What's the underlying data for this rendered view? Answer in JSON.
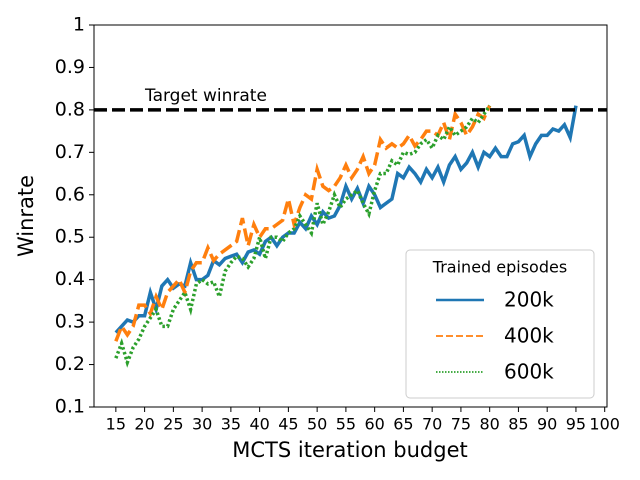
{
  "chart_data": {
    "type": "line",
    "xlabel": "MCTS iteration budget",
    "ylabel": "Winrate",
    "xlim": [
      11.2,
      100.4
    ],
    "ylim": [
      0.1,
      1.0
    ],
    "xticks": [
      15,
      20,
      25,
      30,
      35,
      40,
      45,
      50,
      55,
      60,
      65,
      70,
      75,
      80,
      85,
      90,
      95,
      100
    ],
    "yticks": [
      0.1,
      0.2,
      0.3,
      0.4,
      0.5,
      0.6,
      0.7,
      0.8,
      0.9,
      1.0
    ],
    "reference_line": {
      "value": 0.8,
      "label": "Target winrate",
      "color": "#000000"
    },
    "legend_title": "Trained episodes",
    "legend_position": "lower right",
    "series": [
      {
        "name": "200k",
        "color": "#1f77b4",
        "style": "solid",
        "x": [
          15,
          16,
          17,
          18,
          19,
          20,
          21,
          22,
          23,
          24,
          25,
          26,
          27,
          28,
          29,
          30,
          31,
          32,
          33,
          34,
          35,
          36,
          37,
          38,
          39,
          40,
          41,
          42,
          43,
          44,
          45,
          46,
          47,
          48,
          49,
          50,
          51,
          52,
          53,
          54,
          55,
          56,
          57,
          58,
          59,
          60,
          61,
          62,
          63,
          64,
          65,
          66,
          67,
          68,
          69,
          70,
          71,
          72,
          73,
          74,
          75,
          76,
          77,
          78,
          79,
          80,
          81,
          82,
          83,
          84,
          85,
          86,
          87,
          88,
          89,
          90,
          91,
          92,
          93,
          94,
          95
        ],
        "values": [
          0.275,
          0.29,
          0.305,
          0.3,
          0.315,
          0.315,
          0.37,
          0.33,
          0.385,
          0.4,
          0.38,
          0.39,
          0.385,
          0.44,
          0.4,
          0.4,
          0.41,
          0.445,
          0.435,
          0.45,
          0.455,
          0.46,
          0.44,
          0.465,
          0.47,
          0.46,
          0.49,
          0.5,
          0.48,
          0.5,
          0.51,
          0.51,
          0.535,
          0.52,
          0.55,
          0.53,
          0.56,
          0.545,
          0.55,
          0.575,
          0.62,
          0.59,
          0.615,
          0.58,
          0.62,
          0.6,
          0.57,
          0.58,
          0.59,
          0.65,
          0.64,
          0.665,
          0.65,
          0.63,
          0.66,
          0.64,
          0.665,
          0.63,
          0.67,
          0.69,
          0.66,
          0.675,
          0.7,
          0.665,
          0.7,
          0.69,
          0.71,
          0.69,
          0.69,
          0.72,
          0.725,
          0.74,
          0.69,
          0.72,
          0.74,
          0.74,
          0.755,
          0.75,
          0.765,
          0.735,
          0.81
        ]
      },
      {
        "name": "400k",
        "color": "#ff7f0e",
        "style": "dashed",
        "x": [
          15,
          16,
          17,
          18,
          19,
          20,
          21,
          22,
          23,
          24,
          25,
          26,
          27,
          28,
          29,
          30,
          31,
          32,
          33,
          34,
          35,
          36,
          37,
          38,
          39,
          40,
          41,
          42,
          43,
          44,
          45,
          46,
          47,
          48,
          49,
          50,
          51,
          52,
          53,
          54,
          55,
          56,
          57,
          58,
          59,
          60,
          61,
          62,
          63,
          64,
          65,
          66,
          67,
          68,
          69,
          70,
          71,
          72,
          73,
          74,
          75,
          76,
          77,
          78,
          79,
          80
        ],
        "values": [
          0.255,
          0.29,
          0.27,
          0.29,
          0.34,
          0.34,
          0.32,
          0.36,
          0.33,
          0.37,
          0.385,
          0.4,
          0.37,
          0.42,
          0.44,
          0.44,
          0.475,
          0.445,
          0.46,
          0.47,
          0.48,
          0.49,
          0.545,
          0.48,
          0.53,
          0.5,
          0.52,
          0.52,
          0.53,
          0.54,
          0.59,
          0.53,
          0.57,
          0.6,
          0.59,
          0.66,
          0.62,
          0.61,
          0.62,
          0.64,
          0.67,
          0.64,
          0.66,
          0.69,
          0.65,
          0.67,
          0.73,
          0.71,
          0.72,
          0.71,
          0.72,
          0.74,
          0.715,
          0.73,
          0.75,
          0.75,
          0.74,
          0.77,
          0.73,
          0.79,
          0.77,
          0.74,
          0.76,
          0.79,
          0.78,
          0.81
        ]
      },
      {
        "name": "600k",
        "color": "#2ca02c",
        "style": "dotted",
        "x": [
          15,
          16,
          17,
          18,
          19,
          20,
          21,
          22,
          23,
          24,
          25,
          26,
          27,
          28,
          29,
          30,
          31,
          32,
          33,
          34,
          35,
          36,
          37,
          38,
          39,
          40,
          41,
          42,
          43,
          44,
          45,
          46,
          47,
          48,
          49,
          50,
          51,
          52,
          53,
          54,
          55,
          56,
          57,
          58,
          59,
          60,
          61,
          62,
          63,
          64,
          65,
          66,
          67,
          68,
          69,
          70,
          71,
          72,
          73,
          74,
          75,
          76,
          77,
          78,
          79,
          80
        ],
        "values": [
          0.215,
          0.25,
          0.205,
          0.24,
          0.26,
          0.29,
          0.31,
          0.33,
          0.29,
          0.29,
          0.33,
          0.35,
          0.37,
          0.33,
          0.39,
          0.4,
          0.39,
          0.395,
          0.36,
          0.42,
          0.44,
          0.455,
          0.45,
          0.43,
          0.45,
          0.5,
          0.45,
          0.5,
          0.5,
          0.49,
          0.51,
          0.52,
          0.55,
          0.53,
          0.51,
          0.58,
          0.53,
          0.56,
          0.6,
          0.57,
          0.59,
          0.6,
          0.61,
          0.58,
          0.555,
          0.61,
          0.65,
          0.65,
          0.68,
          0.67,
          0.7,
          0.695,
          0.7,
          0.72,
          0.73,
          0.71,
          0.74,
          0.73,
          0.76,
          0.74,
          0.75,
          0.76,
          0.78,
          0.77,
          0.79,
          0.81
        ]
      }
    ]
  }
}
